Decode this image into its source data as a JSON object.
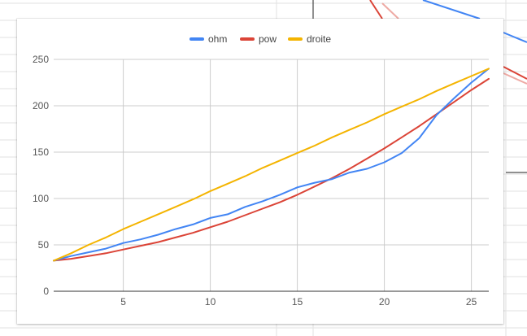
{
  "chart_data": {
    "type": "line",
    "title": "",
    "xlabel": "",
    "ylabel": "",
    "x": [
      1,
      2,
      3,
      4,
      5,
      6,
      7,
      8,
      9,
      10,
      11,
      12,
      13,
      14,
      15,
      16,
      17,
      18,
      19,
      20,
      21,
      22,
      23,
      24,
      25,
      26
    ],
    "xlim": [
      1,
      26
    ],
    "ylim": [
      0,
      250
    ],
    "x_ticks": [
      5,
      10,
      15,
      20,
      25
    ],
    "y_ticks": [
      0,
      50,
      100,
      150,
      200,
      250
    ],
    "grid": true,
    "legend_position": "top",
    "series": [
      {
        "name": "ohm",
        "color": "#4285f4",
        "values": [
          33,
          38,
          42,
          46,
          52,
          56,
          61,
          67,
          72,
          79,
          83,
          91,
          97,
          104,
          112,
          117,
          121,
          128,
          132,
          139,
          149,
          165,
          190,
          208,
          225,
          240
        ]
      },
      {
        "name": "pow",
        "color": "#db4437",
        "values": [
          33,
          35,
          38,
          41,
          45,
          49,
          53,
          58,
          63,
          69,
          75,
          82,
          89,
          96,
          104,
          113,
          122,
          132,
          143,
          154,
          166,
          178,
          191,
          204,
          217,
          229
        ]
      },
      {
        "name": "droite",
        "color": "#f4b400",
        "values": [
          33,
          41,
          50,
          58,
          67,
          75,
          83,
          91,
          99,
          108,
          116,
          124,
          133,
          141,
          149,
          157,
          166,
          174,
          182,
          191,
          199,
          207,
          216,
          224,
          232,
          240
        ]
      }
    ]
  }
}
